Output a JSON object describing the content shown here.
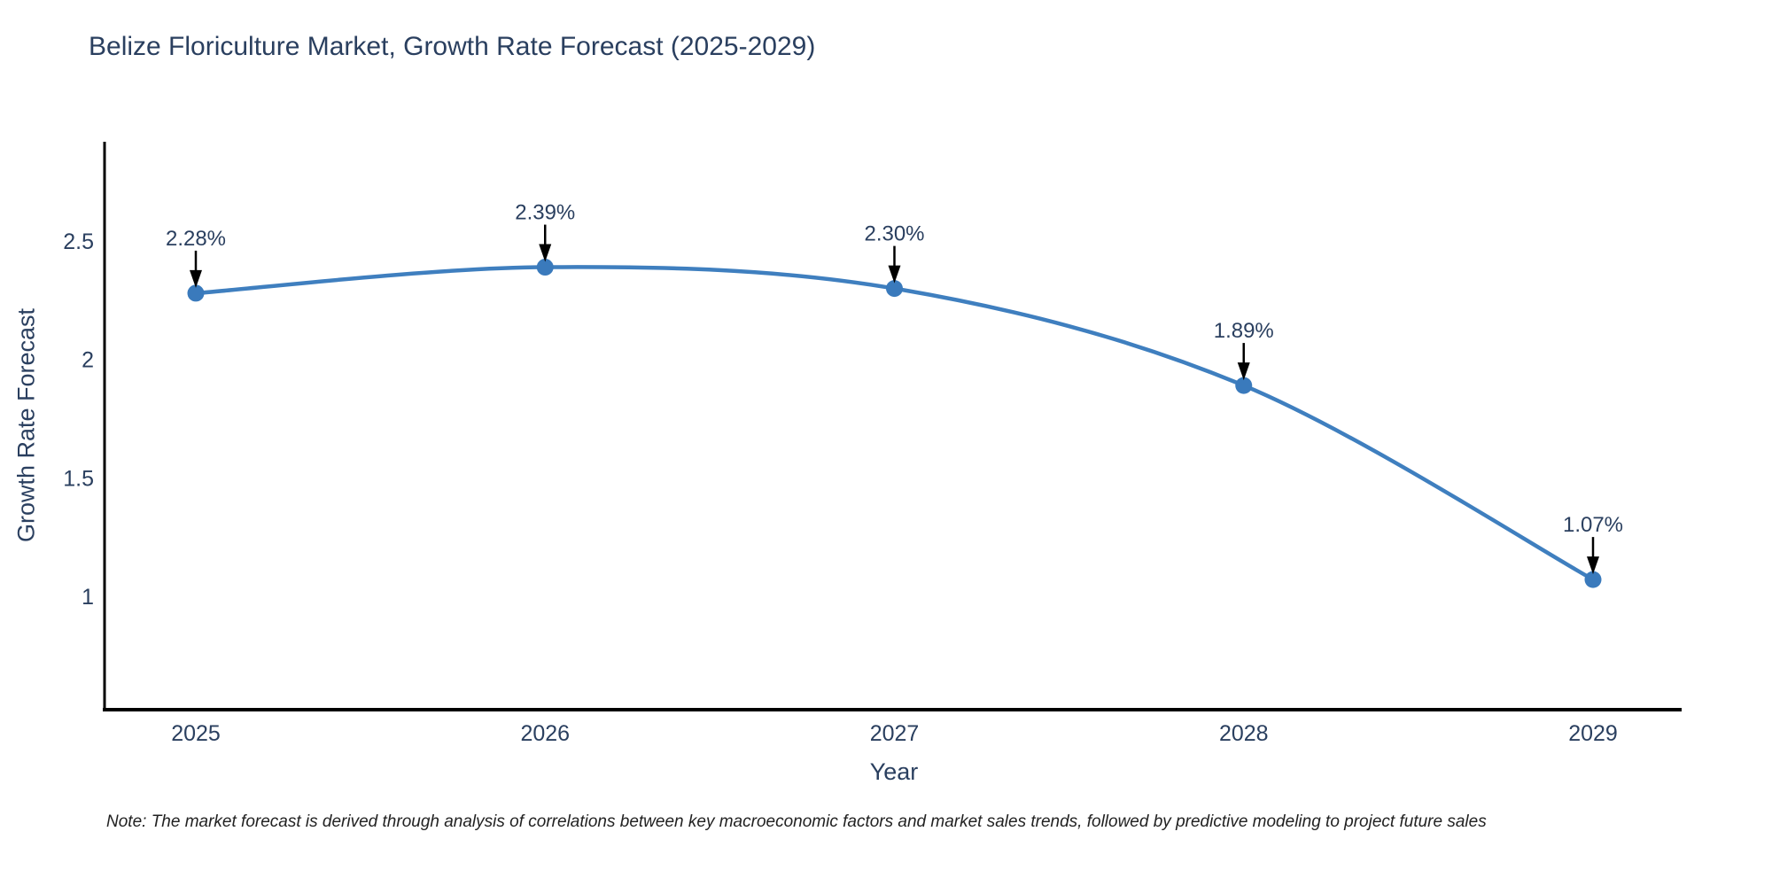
{
  "title": "Belize Floriculture Market, Growth Rate Forecast (2025-2029)",
  "note": "Note: The market forecast is derived through analysis of correlations between key macroeconomic factors and market sales trends, followed by predictive modeling to project future sales",
  "chart_data": {
    "type": "line",
    "title": "Belize Floriculture Market, Growth Rate Forecast (2025-2029)",
    "xlabel": "Year",
    "ylabel": "Growth Rate Forecast",
    "categories": [
      "2025",
      "2026",
      "2027",
      "2028",
      "2029"
    ],
    "values": [
      2.28,
      2.39,
      2.3,
      1.89,
      1.07
    ],
    "point_labels": [
      "2.28%",
      "2.39%",
      "2.30%",
      "1.89%",
      "1.07%"
    ],
    "yticks": [
      2.5,
      2.0,
      1.5,
      1.0
    ],
    "ytick_labels": [
      "2.5",
      "2",
      "1.5",
      "1"
    ],
    "ylim": [
      0.52,
      2.92
    ],
    "line_shape": "spline",
    "grid": false,
    "legend": "none",
    "annotations": "arrow-labels above each point",
    "colors": {
      "line": "#3f7fbf",
      "marker": "#3a7abc",
      "text": "#2a3f5f",
      "axis": "#000000",
      "arrow": "#000000",
      "note_text": "#222222",
      "background": "#ffffff"
    }
  }
}
